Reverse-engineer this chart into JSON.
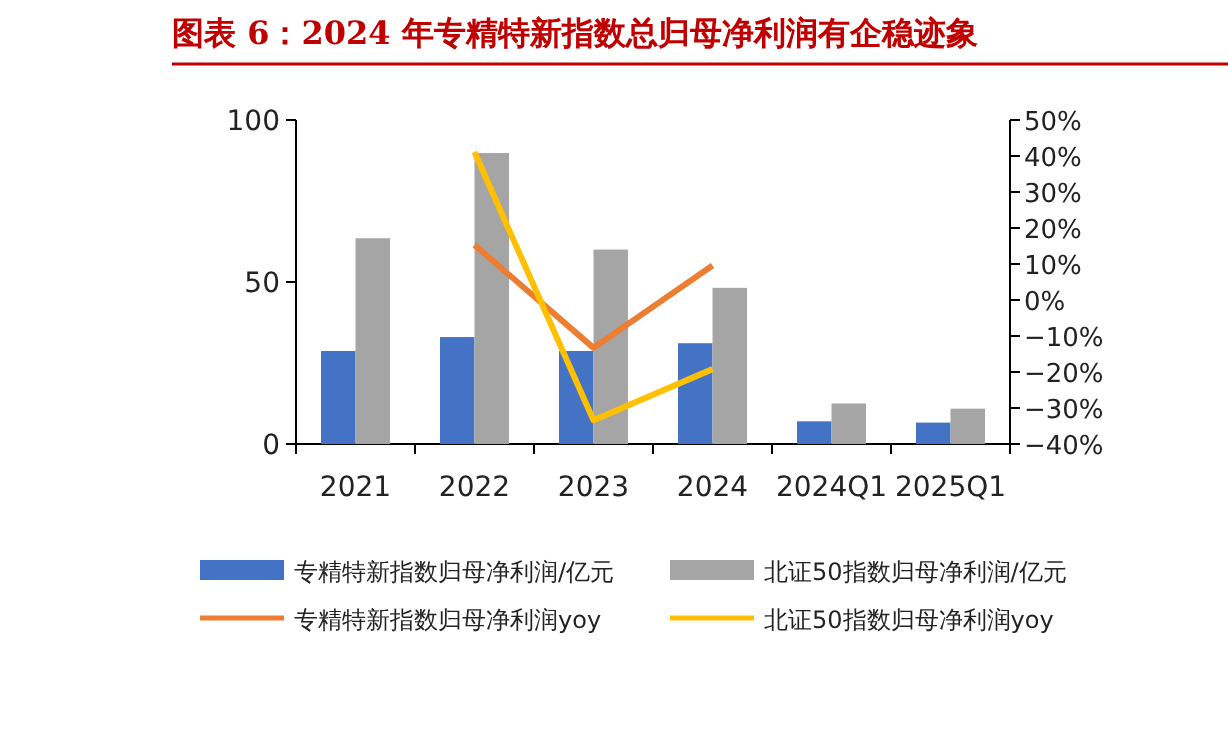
{
  "chart_data": {
    "type": "bar",
    "title": "图表 6：2024 年专精特新指数总归母净利润有企稳迹象",
    "categories": [
      "2021",
      "2022",
      "2023",
      "2024",
      "2024Q1",
      "2025Q1"
    ],
    "series": [
      {
        "name": "专精特新指数归母净利润/亿元",
        "color": "#4472c4",
        "values": [
          28.7,
          33,
          28.7,
          31.1,
          7,
          6.6
        ]
      },
      {
        "name": "北证50指数归母净利润/亿元",
        "color": "#a5a5a5",
        "values": [
          63.5,
          89.8,
          60,
          48.2,
          12.5,
          10.9
        ]
      },
      {
        "name": "专精特新指数归母净利润yoy",
        "type": "line",
        "axis": "y2",
        "color": "#ed7d31",
        "values": [
          null,
          15.3,
          -13.3,
          9.6,
          null,
          null
        ]
      },
      {
        "name": "北证50指数归母净利润yoy",
        "type": "line",
        "axis": "y2",
        "color": "#ffc000",
        "values": [
          null,
          41.1,
          -33.4,
          -19.2,
          null,
          null
        ]
      }
    ],
    "ylim": [
      0,
      100
    ],
    "yticks": [
      0,
      50,
      100
    ],
    "y2lim": [
      -40,
      50
    ],
    "y2ticks": [
      {
        "value": -40,
        "label": "−40%"
      },
      {
        "value": -30,
        "label": "−30%"
      },
      {
        "value": -20,
        "label": "−20%"
      },
      {
        "value": -10,
        "label": "−10%"
      },
      {
        "value": 0,
        "label": "0%"
      },
      {
        "value": 10,
        "label": "10%"
      },
      {
        "value": 20,
        "label": "20%"
      },
      {
        "value": 30,
        "label": "30%"
      },
      {
        "value": 40,
        "label": "40%"
      },
      {
        "value": 50,
        "label": "50%"
      }
    ],
    "legend": "bottom",
    "grid": false
  }
}
